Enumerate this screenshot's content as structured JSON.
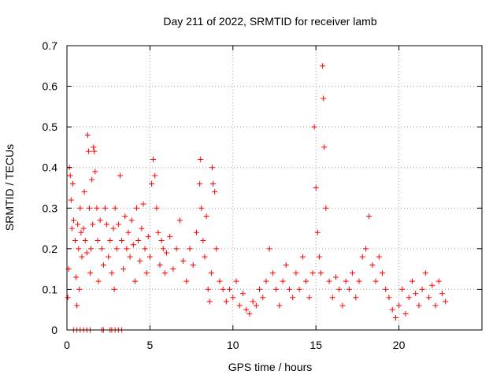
{
  "chart_data": {
    "type": "scatter",
    "title": "Day 211 of 2022, SRMTID for receiver lamb",
    "xlabel": "GPS time / hours",
    "ylabel": "SRMTID / TECUs",
    "xlim": [
      0,
      25
    ],
    "ylim": [
      0,
      0.7
    ],
    "xticks": [
      0,
      5,
      10,
      15,
      20
    ],
    "yticks": [
      0,
      0.1,
      0.2,
      0.3,
      0.4,
      0.5,
      0.6,
      0.7
    ],
    "xtick_labels": [
      "0",
      "5",
      "10",
      "15",
      "20"
    ],
    "ytick_labels": [
      "0",
      "0.1",
      "0.2",
      "0.3",
      "0.4",
      "0.5",
      "0.6",
      "0.7"
    ],
    "grid": true,
    "marker": "+",
    "color": "#ff0000",
    "series": [
      {
        "name": "SRMTID",
        "points": [
          [
            0.05,
            0.08
          ],
          [
            0.1,
            0.15
          ],
          [
            0.15,
            0.4
          ],
          [
            0.2,
            0.38
          ],
          [
            0.25,
            0.32
          ],
          [
            0.3,
            0.25
          ],
          [
            0.35,
            0.36
          ],
          [
            0.4,
            0.27
          ],
          [
            0.5,
            0.22
          ],
          [
            0.55,
            0.13
          ],
          [
            0.6,
            0.06
          ],
          [
            0.65,
            0.26
          ],
          [
            0.7,
            0.2
          ],
          [
            0.75,
            0.1
          ],
          [
            0.8,
            0.3
          ],
          [
            0.85,
            0.24
          ],
          [
            0.9,
            0.18
          ],
          [
            1.0,
            0.25
          ],
          [
            1.05,
            0.34
          ],
          [
            1.1,
            0.22
          ],
          [
            1.2,
            0.19
          ],
          [
            1.25,
            0.48
          ],
          [
            1.3,
            0.44
          ],
          [
            1.35,
            0.3
          ],
          [
            1.4,
            0.14
          ],
          [
            1.45,
            0.2
          ],
          [
            1.5,
            0.37
          ],
          [
            1.55,
            0.26
          ],
          [
            1.6,
            0.45
          ],
          [
            1.65,
            0.44
          ],
          [
            1.7,
            0.39
          ],
          [
            1.8,
            0.3
          ],
          [
            1.85,
            0.22
          ],
          [
            1.9,
            0.12
          ],
          [
            2.0,
            0.27
          ],
          [
            2.1,
            0.2
          ],
          [
            2.2,
            0.16
          ],
          [
            2.3,
            0.3
          ],
          [
            2.4,
            0.26
          ],
          [
            2.5,
            0.18
          ],
          [
            2.6,
            0.22
          ],
          [
            2.7,
            0.14
          ],
          [
            2.8,
            0.25
          ],
          [
            2.85,
            0.1
          ],
          [
            2.9,
            0.3
          ],
          [
            3.0,
            0.2
          ],
          [
            3.1,
            0.26
          ],
          [
            3.2,
            0.38
          ],
          [
            3.3,
            0.22
          ],
          [
            3.4,
            0.15
          ],
          [
            3.5,
            0.28
          ],
          [
            3.6,
            0.2
          ],
          [
            3.7,
            0.24
          ],
          [
            3.8,
            0.18
          ],
          [
            3.9,
            0.27
          ],
          [
            4.0,
            0.21
          ],
          [
            4.1,
            0.12
          ],
          [
            4.2,
            0.3
          ],
          [
            4.3,
            0.22
          ],
          [
            4.4,
            0.17
          ],
          [
            4.5,
            0.25
          ],
          [
            4.6,
            0.31
          ],
          [
            4.7,
            0.2
          ],
          [
            4.8,
            0.14
          ],
          [
            4.9,
            0.23
          ],
          [
            5.0,
            0.18
          ],
          [
            5.1,
            0.36
          ],
          [
            5.2,
            0.42
          ],
          [
            5.3,
            0.38
          ],
          [
            5.4,
            0.3
          ],
          [
            5.5,
            0.24
          ],
          [
            5.6,
            0.16
          ],
          [
            5.7,
            0.22
          ],
          [
            5.8,
            0.2
          ],
          [
            5.9,
            0.14
          ],
          [
            6.0,
            0.19
          ],
          [
            6.2,
            0.23
          ],
          [
            6.4,
            0.15
          ],
          [
            6.6,
            0.2
          ],
          [
            6.8,
            0.27
          ],
          [
            7.0,
            0.17
          ],
          [
            7.2,
            0.12
          ],
          [
            7.4,
            0.2
          ],
          [
            7.6,
            0.16
          ],
          [
            7.8,
            0.24
          ],
          [
            8.0,
            0.36
          ],
          [
            8.05,
            0.42
          ],
          [
            8.1,
            0.3
          ],
          [
            8.2,
            0.22
          ],
          [
            8.3,
            0.18
          ],
          [
            8.4,
            0.28
          ],
          [
            8.5,
            0.1
          ],
          [
            8.6,
            0.07
          ],
          [
            8.7,
            0.14
          ],
          [
            8.75,
            0.4
          ],
          [
            8.8,
            0.36
          ],
          [
            8.9,
            0.34
          ],
          [
            9.0,
            0.2
          ],
          [
            9.2,
            0.12
          ],
          [
            9.4,
            0.1
          ],
          [
            9.6,
            0.07
          ],
          [
            9.8,
            0.1
          ],
          [
            10.0,
            0.08
          ],
          [
            10.2,
            0.12
          ],
          [
            10.4,
            0.06
          ],
          [
            10.6,
            0.09
          ],
          [
            10.8,
            0.05
          ],
          [
            11.0,
            0.04
          ],
          [
            11.2,
            0.07
          ],
          [
            11.4,
            0.06
          ],
          [
            11.6,
            0.1
          ],
          [
            11.8,
            0.08
          ],
          [
            12.0,
            0.12
          ],
          [
            12.2,
            0.2
          ],
          [
            12.4,
            0.14
          ],
          [
            12.6,
            0.1
          ],
          [
            12.8,
            0.06
          ],
          [
            13.0,
            0.12
          ],
          [
            13.2,
            0.16
          ],
          [
            13.4,
            0.1
          ],
          [
            13.6,
            0.08
          ],
          [
            13.8,
            0.14
          ],
          [
            14.0,
            0.1
          ],
          [
            14.2,
            0.18
          ],
          [
            14.4,
            0.12
          ],
          [
            14.6,
            0.08
          ],
          [
            14.8,
            0.14
          ],
          [
            14.9,
            0.5
          ],
          [
            15.0,
            0.35
          ],
          [
            15.1,
            0.24
          ],
          [
            15.2,
            0.18
          ],
          [
            15.3,
            0.14
          ],
          [
            15.4,
            0.65
          ],
          [
            15.45,
            0.57
          ],
          [
            15.5,
            0.45
          ],
          [
            15.6,
            0.3
          ],
          [
            15.8,
            0.12
          ],
          [
            16.0,
            0.08
          ],
          [
            16.2,
            0.13
          ],
          [
            16.4,
            0.1
          ],
          [
            16.6,
            0.06
          ],
          [
            16.8,
            0.12
          ],
          [
            17.0,
            0.1
          ],
          [
            17.2,
            0.14
          ],
          [
            17.4,
            0.08
          ],
          [
            17.6,
            0.12
          ],
          [
            17.8,
            0.18
          ],
          [
            18.0,
            0.2
          ],
          [
            18.2,
            0.28
          ],
          [
            18.4,
            0.16
          ],
          [
            18.6,
            0.12
          ],
          [
            18.8,
            0.18
          ],
          [
            19.0,
            0.14
          ],
          [
            19.2,
            0.1
          ],
          [
            19.4,
            0.08
          ],
          [
            19.6,
            0.05
          ],
          [
            19.8,
            0.03
          ],
          [
            20.0,
            0.06
          ],
          [
            20.2,
            0.1
          ],
          [
            20.4,
            0.04
          ],
          [
            20.6,
            0.08
          ],
          [
            20.8,
            0.12
          ],
          [
            21.0,
            0.09
          ],
          [
            21.2,
            0.06
          ],
          [
            21.4,
            0.1
          ],
          [
            21.6,
            0.14
          ],
          [
            21.8,
            0.08
          ],
          [
            22.0,
            0.11
          ],
          [
            22.2,
            0.06
          ],
          [
            22.4,
            0.12
          ],
          [
            22.6,
            0.09
          ],
          [
            22.8,
            0.07
          ],
          [
            0.4,
            0
          ],
          [
            0.6,
            0
          ],
          [
            0.8,
            0
          ],
          [
            1.0,
            0
          ],
          [
            1.2,
            0
          ],
          [
            1.4,
            0
          ],
          [
            2.1,
            0
          ],
          [
            2.2,
            0
          ],
          [
            2.6,
            0
          ],
          [
            2.7,
            0
          ],
          [
            2.9,
            0
          ],
          [
            3.1,
            0
          ],
          [
            3.3,
            0
          ]
        ]
      }
    ]
  }
}
